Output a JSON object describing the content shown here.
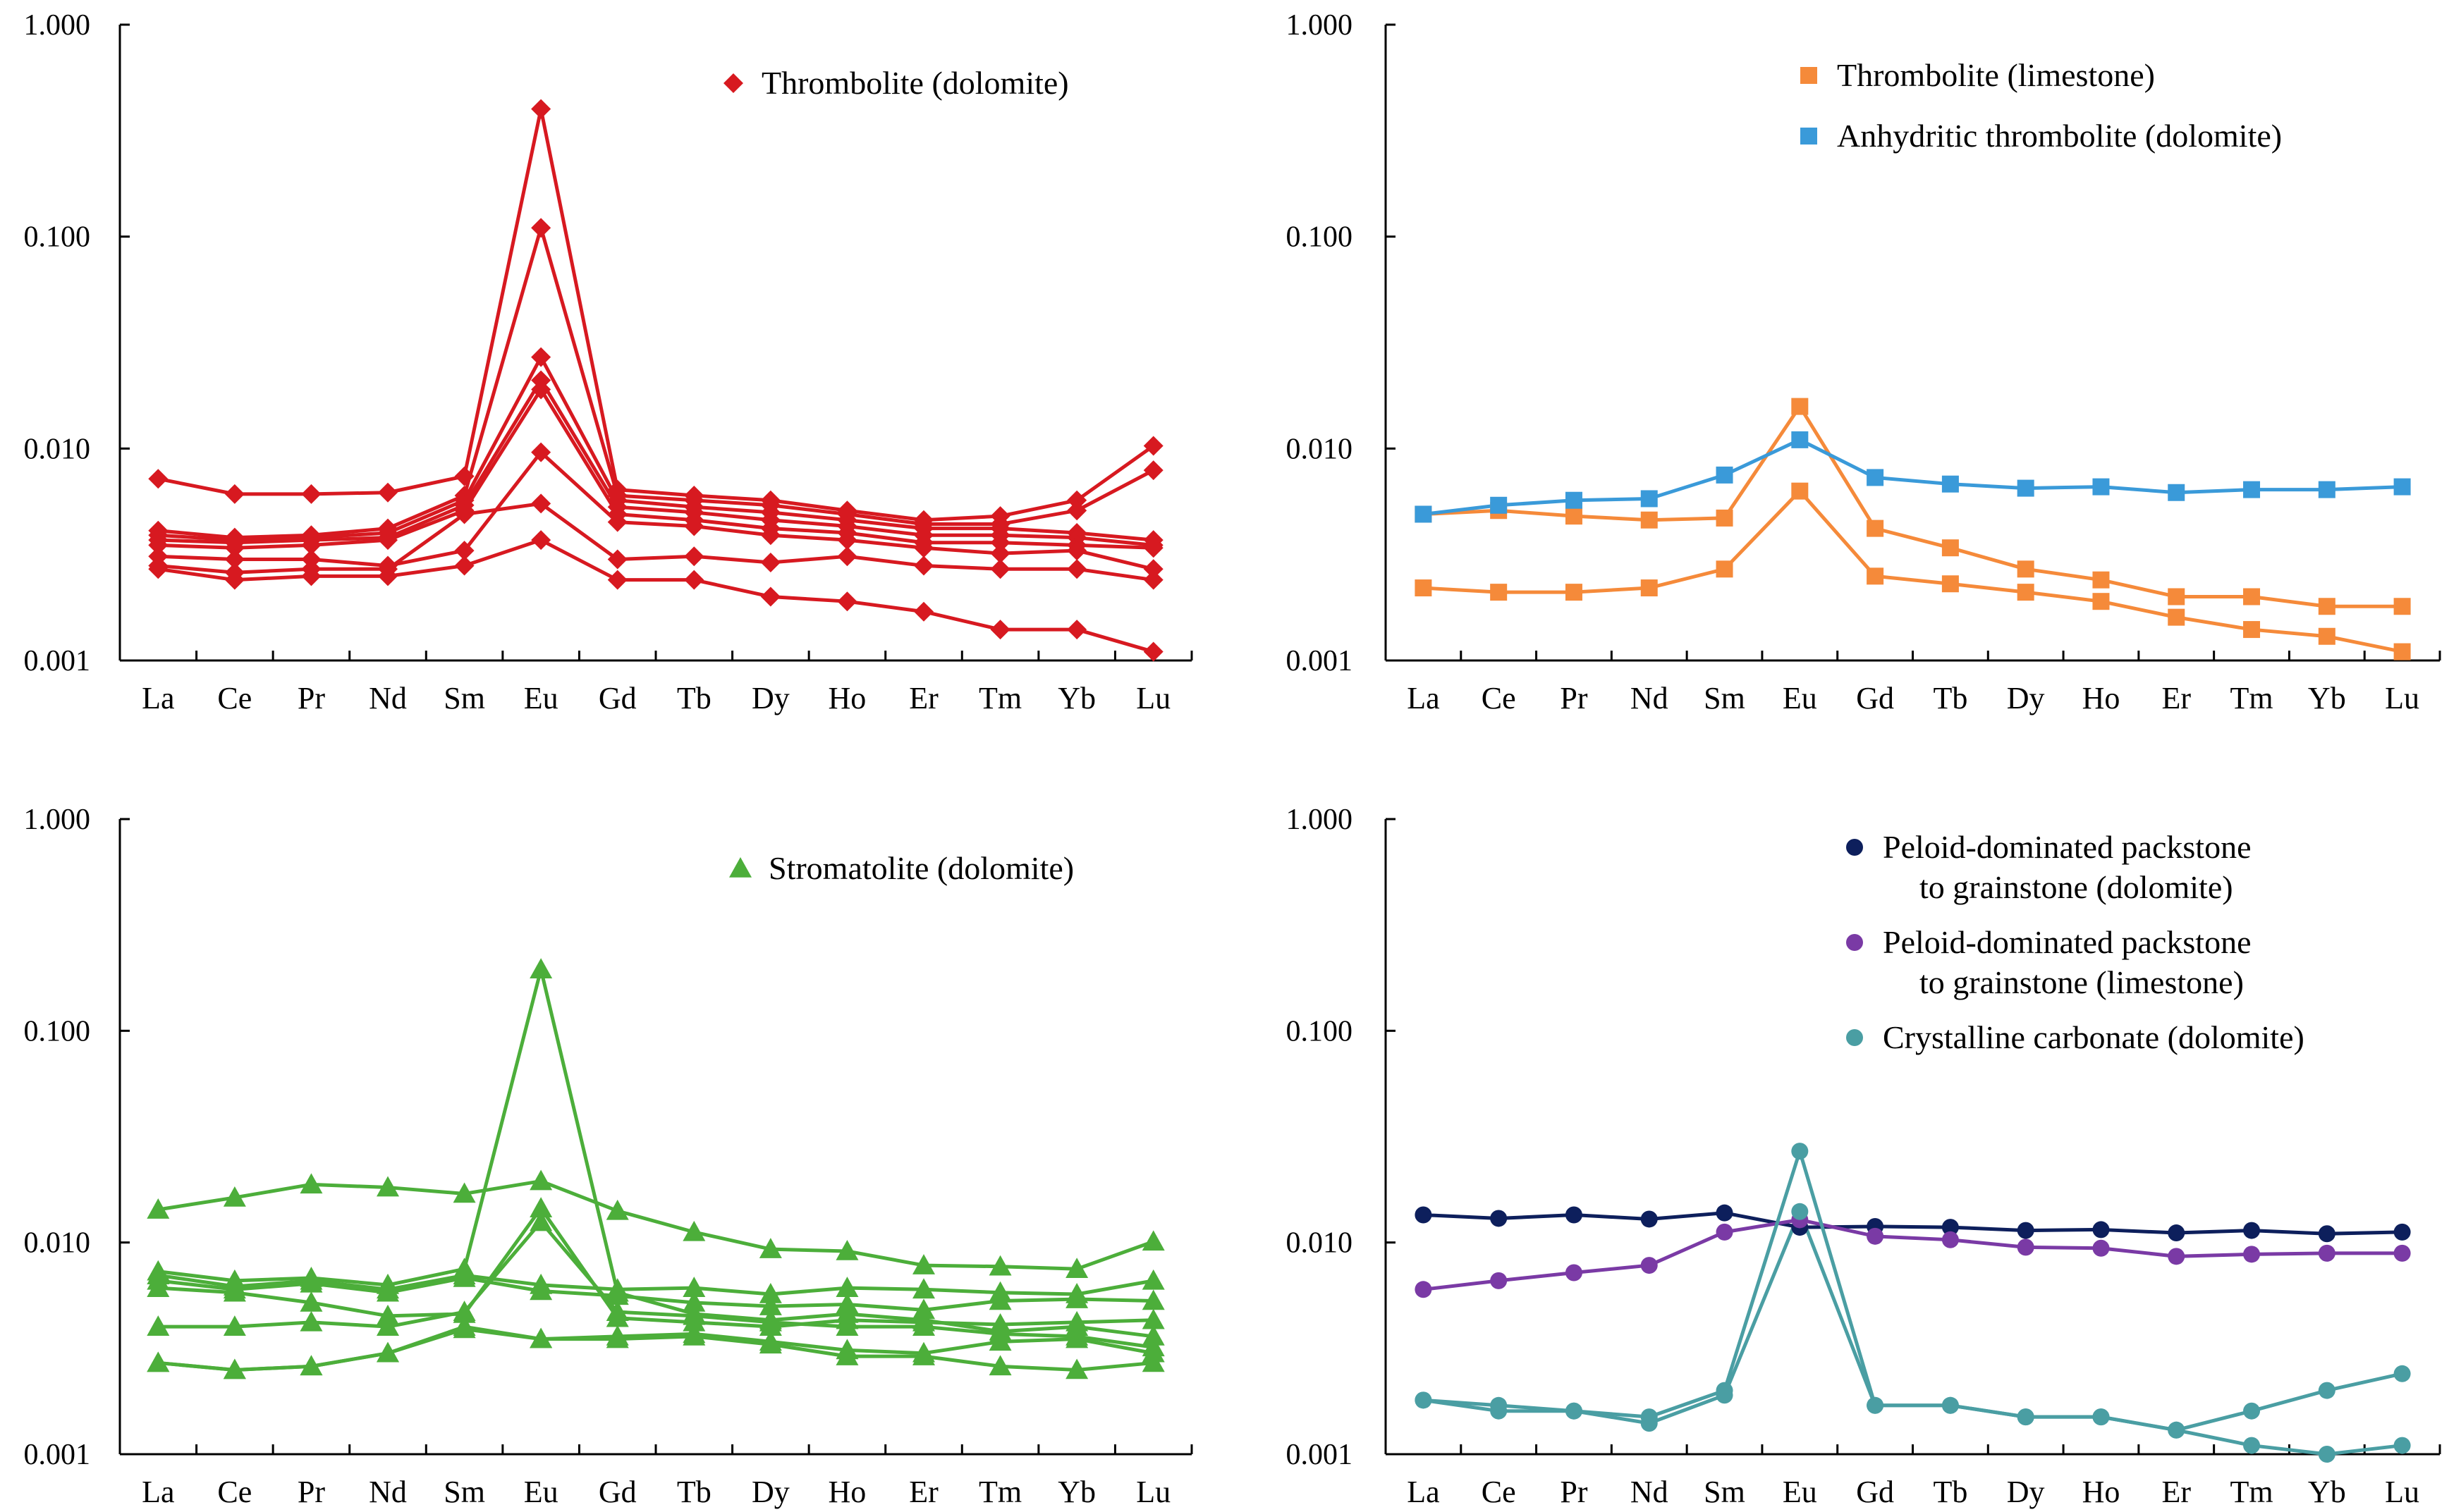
{
  "categories": [
    "La",
    "Ce",
    "Pr",
    "Nd",
    "Sm",
    "Eu",
    "Gd",
    "Tb",
    "Dy",
    "Ho",
    "Er",
    "Tm",
    "Yb",
    "Lu"
  ],
  "chart_data": [
    {
      "type": "line",
      "scale": "log",
      "ylim": [
        0.001,
        1.0
      ],
      "yticks": [
        1.0,
        0.1,
        0.01,
        0.001
      ],
      "ytick_labels": [
        "1.000",
        "0.100",
        "0.010",
        "0.001"
      ],
      "categories": [
        "La",
        "Ce",
        "Pr",
        "Nd",
        "Sm",
        "Eu",
        "Gd",
        "Tb",
        "Dy",
        "Ho",
        "Er",
        "Tm",
        "Yb",
        "Lu"
      ],
      "legend": [
        {
          "label": "Thrombolite (dolomite)",
          "marker": "diamond",
          "color": "#d71920"
        }
      ],
      "series": [
        {
          "name": "Thrombolite (dolomite)",
          "marker": "diamond",
          "color": "#d71920",
          "values": [
            0.0072,
            0.0061,
            0.0061,
            0.0062,
            0.0074,
            0.4,
            0.0064,
            0.006,
            0.0057,
            0.0051,
            0.0046,
            0.0048,
            0.0057,
            0.0103
          ]
        },
        {
          "name": "Thrombolite (dolomite)",
          "marker": "diamond",
          "color": "#d71920",
          "values": [
            0.0041,
            0.0038,
            0.0039,
            0.0042,
            0.006,
            0.11,
            0.006,
            0.0057,
            0.0054,
            0.0049,
            0.0044,
            0.0044,
            0.0051,
            0.0079
          ]
        },
        {
          "name": "Thrombolite (dolomite)",
          "marker": "diamond",
          "color": "#d71920",
          "values": [
            0.0039,
            0.0037,
            0.0038,
            0.004,
            0.0057,
            0.027,
            0.0057,
            0.0053,
            0.005,
            0.0046,
            0.0042,
            0.0042,
            0.004,
            0.0037
          ]
        },
        {
          "name": "Thrombolite (dolomite)",
          "marker": "diamond",
          "color": "#d71920",
          "values": [
            0.0037,
            0.0036,
            0.0037,
            0.0038,
            0.0054,
            0.021,
            0.0053,
            0.005,
            0.0046,
            0.0043,
            0.0039,
            0.0039,
            0.0038,
            0.0035
          ]
        },
        {
          "name": "Thrombolite (dolomite)",
          "marker": "diamond",
          "color": "#d71920",
          "values": [
            0.0035,
            0.0034,
            0.0035,
            0.0037,
            0.0051,
            0.019,
            0.0049,
            0.0046,
            0.0042,
            0.004,
            0.0036,
            0.0036,
            0.0035,
            0.0034
          ]
        },
        {
          "name": "Thrombolite (dolomite)",
          "marker": "diamond",
          "color": "#d71920",
          "values": [
            0.0031,
            0.003,
            0.003,
            0.0028,
            0.0033,
            0.0096,
            0.0045,
            0.0043,
            0.0039,
            0.0037,
            0.0034,
            0.0032,
            0.0033,
            0.0027
          ]
        },
        {
          "name": "Thrombolite (dolomite)",
          "marker": "diamond",
          "color": "#d71920",
          "values": [
            0.0028,
            0.0026,
            0.0027,
            0.0027,
            0.0049,
            0.0055,
            0.003,
            0.0031,
            0.0029,
            0.0031,
            0.0028,
            0.0027,
            0.0027,
            0.0024
          ]
        },
        {
          "name": "Thrombolite (dolomite)",
          "marker": "diamond",
          "color": "#d71920",
          "values": [
            0.0027,
            0.0024,
            0.0025,
            0.0025,
            0.0028,
            0.0037,
            0.0024,
            0.0024,
            0.002,
            0.0019,
            0.0017,
            0.0014,
            0.0014,
            0.0011
          ]
        }
      ]
    },
    {
      "type": "line",
      "scale": "log",
      "ylim": [
        0.001,
        1.0
      ],
      "yticks": [
        1.0,
        0.1,
        0.01,
        0.001
      ],
      "ytick_labels": [
        "1.000",
        "0.100",
        "0.010",
        "0.001"
      ],
      "categories": [
        "La",
        "Ce",
        "Pr",
        "Nd",
        "Sm",
        "Eu",
        "Gd",
        "Tb",
        "Dy",
        "Ho",
        "Er",
        "Tm",
        "Yb",
        "Lu"
      ],
      "legend": [
        {
          "label": "Thrombolite (limestone)",
          "marker": "square",
          "color": "#f58a3a"
        },
        {
          "label": "Anhydritic thrombolite (dolomite)",
          "marker": "square",
          "color": "#3a9ad9"
        }
      ],
      "series": [
        {
          "name": "Thrombolite (limestone)",
          "marker": "square",
          "color": "#f58a3a",
          "values": [
            0.0049,
            0.0051,
            0.0048,
            0.0046,
            0.0047,
            0.0158,
            0.0042,
            0.0034,
            0.0027,
            0.0024,
            0.002,
            0.002,
            0.0018,
            0.0018
          ]
        },
        {
          "name": "Thrombolite (limestone)",
          "marker": "square",
          "color": "#f58a3a",
          "values": [
            0.0022,
            0.0021,
            0.0021,
            0.0022,
            0.0027,
            0.0063,
            0.0025,
            0.0023,
            0.0021,
            0.0019,
            0.0016,
            0.0014,
            0.0013,
            0.0011
          ]
        },
        {
          "name": "Anhydritic thrombolite (dolomite)",
          "marker": "square",
          "color": "#3a9ad9",
          "values": [
            0.0049,
            0.0054,
            0.0057,
            0.0058,
            0.0075,
            0.011,
            0.0073,
            0.0068,
            0.0065,
            0.0066,
            0.0062,
            0.0064,
            0.0064,
            0.0066
          ]
        }
      ]
    },
    {
      "type": "line",
      "scale": "log",
      "ylim": [
        0.001,
        1.0
      ],
      "yticks": [
        1.0,
        0.1,
        0.01,
        0.001
      ],
      "ytick_labels": [
        "1.000",
        "0.100",
        "0.010",
        "0.001"
      ],
      "categories": [
        "La",
        "Ce",
        "Pr",
        "Nd",
        "Sm",
        "Eu",
        "Gd",
        "Tb",
        "Dy",
        "Ho",
        "Er",
        "Tm",
        "Yb",
        "Lu"
      ],
      "legend": [
        {
          "label": "Stromatolite (dolomite)",
          "marker": "triangle",
          "color": "#4cae3a"
        }
      ],
      "series": [
        {
          "name": "Stromatolite (dolomite)",
          "marker": "triangle",
          "color": "#4cae3a",
          "values": [
            0.0143,
            0.0163,
            0.0188,
            0.0182,
            0.017,
            0.0195,
            0.0141,
            0.0112,
            0.0093,
            0.0091,
            0.0078,
            0.0077,
            0.0075,
            0.0101
          ]
        },
        {
          "name": "Stromatolite (dolomite)",
          "marker": "triangle",
          "color": "#4cae3a",
          "values": [
            0.0073,
            0.0066,
            0.0068,
            0.0063,
            0.0075,
            0.195,
            0.0058,
            0.0046,
            0.0043,
            0.0046,
            0.0043,
            0.0038,
            0.004,
            0.0036
          ]
        },
        {
          "name": "Stromatolite (dolomite)",
          "marker": "triangle",
          "color": "#4cae3a",
          "values": [
            0.007,
            0.0062,
            0.0066,
            0.006,
            0.007,
            0.0063,
            0.006,
            0.0061,
            0.0057,
            0.0061,
            0.006,
            0.0058,
            0.0057,
            0.0066
          ]
        },
        {
          "name": "Stromatolite (dolomite)",
          "marker": "triangle",
          "color": "#4cae3a",
          "values": [
            0.0066,
            0.006,
            0.0064,
            0.0058,
            0.0068,
            0.0059,
            0.0056,
            0.0052,
            0.005,
            0.0051,
            0.0048,
            0.0053,
            0.0054,
            0.0053
          ]
        },
        {
          "name": "Stromatolite (dolomite)",
          "marker": "triangle",
          "color": "#4cae3a",
          "values": [
            0.0061,
            0.0058,
            0.0052,
            0.0045,
            0.0046,
            0.0145,
            0.0044,
            0.0042,
            0.004,
            0.0043,
            0.0042,
            0.0041,
            0.0042,
            0.0043
          ]
        },
        {
          "name": "Stromatolite (dolomite)",
          "marker": "triangle",
          "color": "#4cae3a",
          "values": [
            0.004,
            0.004,
            0.0042,
            0.004,
            0.0047,
            0.0125,
            0.0047,
            0.0045,
            0.0042,
            0.004,
            0.004,
            0.0037,
            0.0036,
            0.0032
          ]
        },
        {
          "name": "Stromatolite (dolomite)",
          "marker": "triangle",
          "color": "#4cae3a",
          "values": [
            0.0027,
            0.0025,
            0.0026,
            0.003,
            0.0039,
            0.0035,
            0.0036,
            0.0037,
            0.0034,
            0.0031,
            0.003,
            0.0034,
            0.0035,
            0.003
          ]
        },
        {
          "name": "Stromatolite (dolomite)",
          "marker": "triangle",
          "color": "#4cae3a",
          "values": [
            0.0027,
            0.0025,
            0.0026,
            0.003,
            0.004,
            0.0035,
            0.0035,
            0.0036,
            0.0033,
            0.0029,
            0.0029,
            0.0026,
            0.0025,
            0.0027
          ]
        }
      ]
    },
    {
      "type": "line",
      "scale": "log",
      "ylim": [
        0.001,
        1.0
      ],
      "yticks": [
        1.0,
        0.1,
        0.01,
        0.001
      ],
      "ytick_labels": [
        "1.000",
        "0.100",
        "0.010",
        "0.001"
      ],
      "categories": [
        "La",
        "Ce",
        "Pr",
        "Nd",
        "Sm",
        "Eu",
        "Gd",
        "Tb",
        "Dy",
        "Ho",
        "Er",
        "Tm",
        "Yb",
        "Lu"
      ],
      "legend": [
        {
          "label": "Peloid-dominated packstone",
          "label2": "to grainstone (dolomite)",
          "marker": "circle",
          "color": "#0d1f5c"
        },
        {
          "label": "Peloid-dominated packstone",
          "label2": "to grainstone (limestone)",
          "marker": "circle",
          "color": "#7a3aa5"
        },
        {
          "label": "Crystalline carbonate (dolomite)",
          "marker": "circle",
          "color": "#4a9ea3"
        }
      ],
      "series": [
        {
          "name": "Peloid-dominated packstone to grainstone (dolomite)",
          "marker": "circle",
          "color": "#0d1f5c",
          "values": [
            0.0135,
            0.013,
            0.0135,
            0.0129,
            0.0138,
            0.0118,
            0.0119,
            0.0118,
            0.0114,
            0.0115,
            0.0111,
            0.0114,
            0.011,
            0.0112
          ]
        },
        {
          "name": "Peloid-dominated packstone to grainstone (limestone)",
          "marker": "circle",
          "color": "#7a3aa5",
          "values": [
            0.006,
            0.0066,
            0.0072,
            0.0078,
            0.0112,
            0.0128,
            0.0107,
            0.0103,
            0.0095,
            0.0094,
            0.0086,
            0.0088,
            0.0089,
            0.0089
          ]
        },
        {
          "name": "Crystalline carbonate (dolomite)",
          "marker": "circle",
          "color": "#4a9ea3",
          "values": [
            0.0018,
            0.0016,
            0.0016,
            0.0015,
            0.002,
            0.027,
            0.0017,
            0.0017,
            0.0015,
            0.0015,
            0.0013,
            0.0011,
            0.001,
            0.0011
          ]
        },
        {
          "name": "Crystalline carbonate (dolomite)",
          "marker": "circle",
          "color": "#4a9ea3",
          "values": [
            0.0018,
            0.0017,
            0.0016,
            0.0014,
            0.0019,
            0.014,
            0.0017,
            0.0017,
            0.0015,
            0.0015,
            0.0013,
            0.0016,
            0.002,
            0.0024
          ]
        }
      ]
    }
  ]
}
